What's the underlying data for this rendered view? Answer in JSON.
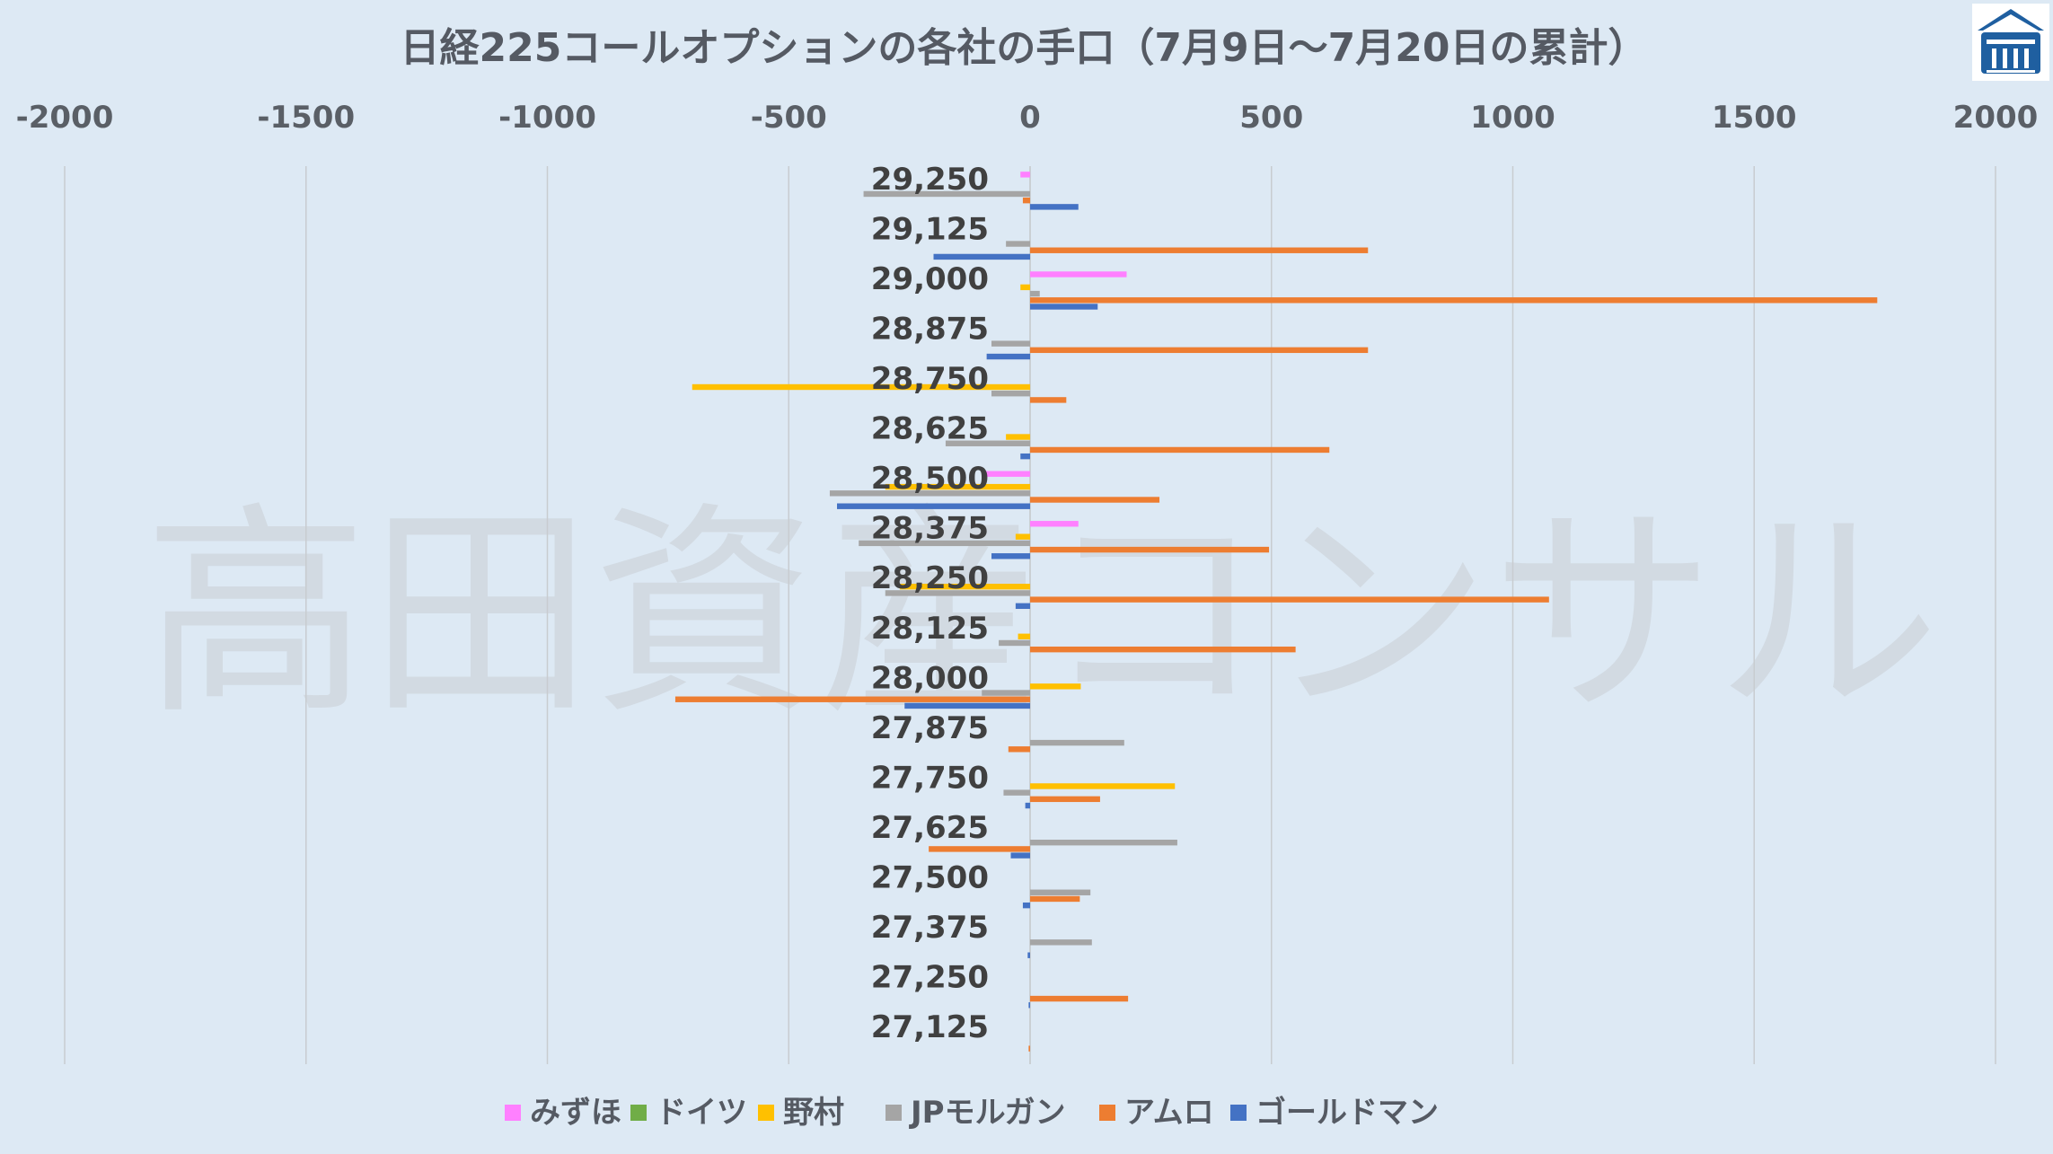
{
  "chart_data": {
    "type": "bar",
    "orientation": "horizontal",
    "title": "日経225コールオプションの各社の手口（7月9日～7月20日の累計）",
    "watermark": "高田資産コンサル",
    "xlim": [
      -2000,
      2000
    ],
    "xticks": [
      -2000,
      -1500,
      -1000,
      -500,
      0,
      500,
      1000,
      1500,
      2000
    ],
    "xtick_labels": [
      "-2000",
      "-1500",
      "-1000",
      "-500",
      "0",
      "500",
      "1000",
      "1500",
      "2000"
    ],
    "grid": true,
    "legend_position": "bottom",
    "categories": [
      "29,250",
      "29,125",
      "29,000",
      "28,875",
      "28,750",
      "28,625",
      "28,500",
      "28,375",
      "28,250",
      "28,125",
      "28,000",
      "27,875",
      "27,750",
      "27,625",
      "27,500",
      "27,375",
      "27,250",
      "27,125"
    ],
    "series": [
      {
        "name": "みずほ",
        "color": "#ff80ff",
        "values": [
          -20,
          0,
          200,
          0,
          0,
          0,
          -100,
          100,
          0,
          0,
          0,
          0,
          0,
          0,
          0,
          0,
          0,
          0
        ]
      },
      {
        "name": "ドイツ",
        "color": "#70ad47",
        "values": [
          0,
          0,
          0,
          0,
          0,
          0,
          0,
          0,
          0,
          0,
          0,
          0,
          0,
          0,
          0,
          0,
          0,
          0
        ]
      },
      {
        "name": "野村",
        "color": "#ffc000",
        "values": [
          0,
          0,
          -20,
          0,
          -700,
          -50,
          -300,
          -30,
          -270,
          -25,
          105,
          0,
          300,
          0,
          0,
          0,
          0,
          0
        ]
      },
      {
        "name": "JPモルガン",
        "color": "#a5a5a5",
        "values": [
          -345,
          -50,
          20,
          -80,
          -80,
          -175,
          -415,
          -355,
          -300,
          -65,
          -100,
          195,
          -55,
          305,
          125,
          128,
          0,
          0
        ]
      },
      {
        "name": "アムロ",
        "color": "#ed7d31",
        "values": [
          -15,
          700,
          1755,
          700,
          75,
          620,
          268,
          495,
          1075,
          550,
          -735,
          -45,
          145,
          -210,
          103,
          0,
          203,
          -3
        ]
      },
      {
        "name": "ゴールドマン",
        "color": "#4472c4",
        "values": [
          100,
          -200,
          140,
          -90,
          0,
          -20,
          -400,
          -80,
          -30,
          0,
          -260,
          0,
          -10,
          -40,
          -15,
          -5,
          -3,
          0
        ]
      }
    ]
  },
  "legend": {
    "items": [
      "みずほ",
      "ドイツ",
      "野村",
      "JPモルガン",
      "アムロ",
      "ゴールドマン"
    ]
  },
  "logo": {
    "icon": "building-logo-icon",
    "color": "#1f5fa0"
  }
}
